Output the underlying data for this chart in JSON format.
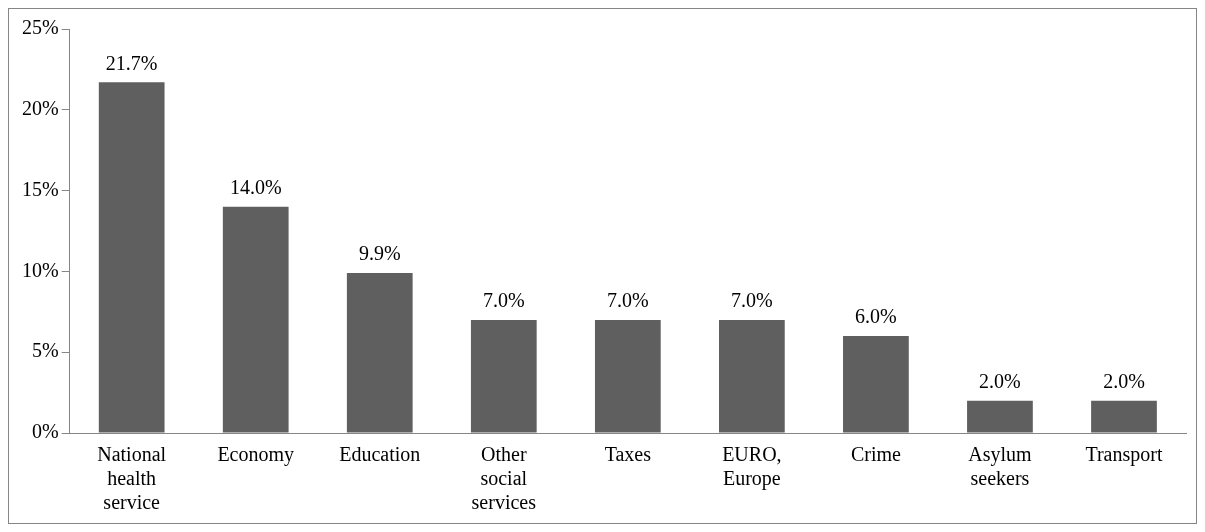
{
  "chart_data": {
    "type": "bar",
    "categories": [
      "National health service",
      "Economy",
      "Education",
      "Other social services",
      "Taxes",
      "EURO, Europe",
      "Crime",
      "Asylum seekers",
      "Transport"
    ],
    "values": [
      21.7,
      14.0,
      9.9,
      7.0,
      7.0,
      7.0,
      6.0,
      2.0,
      2.0
    ],
    "value_labels": [
      "21.7%",
      "14.0%",
      "9.9%",
      "7.0%",
      "7.0%",
      "7.0%",
      "6.0%",
      "2.0%",
      "2.0%"
    ],
    "color": "#5f5f5f",
    "ylim": [
      0,
      25
    ],
    "yticks": [
      {
        "value": 0,
        "label": "0%"
      },
      {
        "value": 5,
        "label": "5%"
      },
      {
        "value": 10,
        "label": "10%"
      },
      {
        "value": 15,
        "label": "15%"
      },
      {
        "value": 20,
        "label": "20%"
      },
      {
        "value": 25,
        "label": "25%"
      }
    ],
    "grid": false,
    "legend": false
  }
}
